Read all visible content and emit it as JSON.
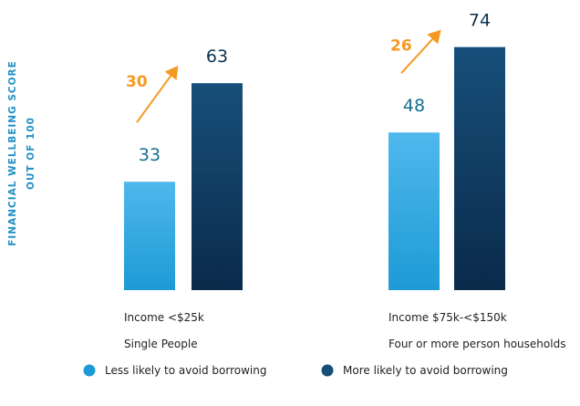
{
  "chart_data": {
    "type": "bar",
    "ylabel": [
      "FINANCIAL WELLBEING SCORE",
      "OUT OF 100"
    ],
    "ylim": [
      0,
      100
    ],
    "grid": false,
    "legend_position": "bottom",
    "categories": [
      {
        "line1": "Income <$25k",
        "line2": "Single People"
      },
      {
        "line1": "Income $75k-<$150k",
        "line2": "Four or more person households"
      }
    ],
    "series": [
      {
        "name": "Less likely to avoid borrowing",
        "values": [
          33,
          48
        ],
        "color_top": "#4fb8ec",
        "color_bottom": "#1d9ad6",
        "label_color": "#156f93"
      },
      {
        "name": "More likely to avoid borrowing",
        "values": [
          63,
          74
        ],
        "color_top": "#174f7a",
        "color_bottom": "#0a2a4a",
        "label_color": "#0c3350"
      }
    ],
    "differences": [
      30,
      26
    ],
    "difference_color": "#f49a22",
    "ylabel_color": "#1f8fc4"
  }
}
